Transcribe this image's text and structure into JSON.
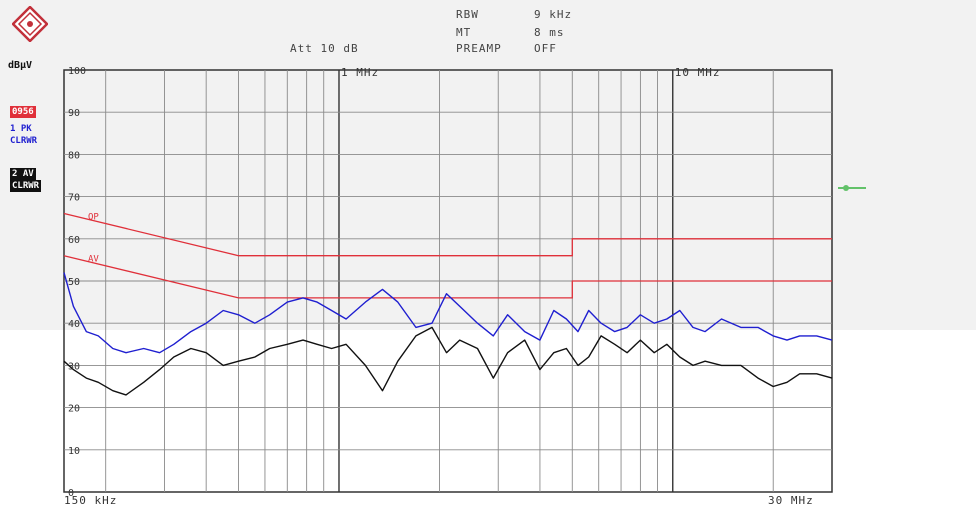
{
  "header": {
    "rbw_label": "RBW",
    "rbw_value": "9 kHz",
    "mt_label": "MT",
    "mt_value": "8 ms",
    "att_text": "Att 10 dB",
    "preamp_label": "PREAMP",
    "preamp_value": "OFF"
  },
  "side_labels": {
    "unit": "dBµV",
    "limit_badge": "0956",
    "trace1_badge_top": "1 PK",
    "trace1_badge_bottom": "CLRWR",
    "trace2_badge_top": "2 AV",
    "trace2_badge_bottom": "CLRWR",
    "limit_qp": "QP",
    "limit_av": "AV"
  },
  "colors": {
    "peak_trace": "#1f1fd0",
    "average_trace": "#111111",
    "limit_line": "#e0303a",
    "limit_badge_bg": "#e0303a",
    "grid": "#8a8a8a"
  },
  "chart_data": {
    "type": "line",
    "title": "",
    "xlabel": "",
    "ylabel": "dBµV",
    "x_scale": "log",
    "xlim_hz": [
      150000,
      30000000
    ],
    "x_start_label": "150 kHz",
    "x_end_label": "30 MHz",
    "x_marker_labels": [
      {
        "freq_hz": 1000000,
        "label": "1 MHz"
      },
      {
        "freq_hz": 10000000,
        "label": "10 MHz"
      }
    ],
    "ylim": [
      0,
      100
    ],
    "y_ticks": [
      0,
      10,
      20,
      30,
      40,
      50,
      60,
      70,
      80,
      90,
      100
    ],
    "y_tick_labels": [
      "0",
      "10",
      "20",
      "30",
      "40",
      "50",
      "60",
      "70",
      "80",
      "90",
      "100"
    ],
    "grid": true,
    "series": [
      {
        "name": "1 PK",
        "x_hz": [
          150000,
          160000,
          175000,
          190000,
          210000,
          230000,
          260000,
          290000,
          320000,
          360000,
          400000,
          450000,
          500000,
          560000,
          620000,
          700000,
          780000,
          860000,
          950000,
          1050000,
          1200000,
          1350000,
          1500000,
          1700000,
          1900000,
          2100000,
          2300000,
          2600000,
          2900000,
          3200000,
          3600000,
          4000000,
          4400000,
          4800000,
          5200000,
          5600000,
          6100000,
          6700000,
          7300000,
          8000000,
          8800000,
          9600000,
          10500000,
          11500000,
          12500000,
          14000000,
          16000000,
          18000000,
          20000000,
          22000000,
          24000000,
          27000000,
          30000000
        ],
        "values": [
          52,
          44,
          38,
          37,
          34,
          33,
          34,
          33,
          35,
          38,
          40,
          43,
          42,
          40,
          42,
          45,
          46,
          45,
          43,
          41,
          45,
          48,
          45,
          39,
          40,
          47,
          44,
          40,
          37,
          42,
          38,
          36,
          43,
          41,
          38,
          43,
          40,
          38,
          39,
          42,
          40,
          41,
          43,
          39,
          38,
          41,
          39,
          39,
          37,
          36,
          37,
          37,
          36
        ]
      },
      {
        "name": "2 AV",
        "x_hz": [
          150000,
          160000,
          175000,
          190000,
          210000,
          230000,
          260000,
          290000,
          320000,
          360000,
          400000,
          450000,
          500000,
          560000,
          620000,
          700000,
          780000,
          860000,
          950000,
          1050000,
          1200000,
          1350000,
          1500000,
          1700000,
          1900000,
          2100000,
          2300000,
          2600000,
          2900000,
          3200000,
          3600000,
          4000000,
          4400000,
          4800000,
          5200000,
          5600000,
          6100000,
          6700000,
          7300000,
          8000000,
          8800000,
          9600000,
          10500000,
          11500000,
          12500000,
          14000000,
          16000000,
          18000000,
          20000000,
          22000000,
          24000000,
          27000000,
          30000000
        ],
        "values": [
          31,
          29,
          27,
          26,
          24,
          23,
          26,
          29,
          32,
          34,
          33,
          30,
          31,
          32,
          34,
          35,
          36,
          35,
          34,
          35,
          30,
          24,
          31,
          37,
          39,
          33,
          36,
          34,
          27,
          33,
          36,
          29,
          33,
          34,
          30,
          32,
          37,
          35,
          33,
          36,
          33,
          35,
          32,
          30,
          31,
          30,
          30,
          27,
          25,
          26,
          28,
          28,
          27
        ]
      },
      {
        "name": "QP",
        "type": "limit",
        "x_hz": [
          150000,
          500000,
          5000000,
          5000000,
          30000000
        ],
        "values": [
          66,
          56,
          56,
          60,
          60
        ]
      },
      {
        "name": "AV",
        "type": "limit",
        "x_hz": [
          150000,
          500000,
          5000000,
          5000000,
          30000000
        ],
        "values": [
          56,
          46,
          46,
          50,
          50
        ]
      }
    ]
  }
}
